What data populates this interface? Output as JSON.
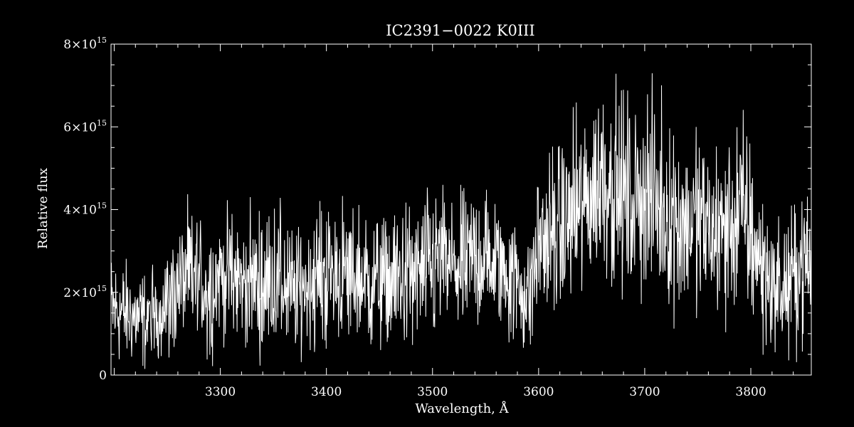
{
  "chart_data": {
    "type": "line",
    "title": "IC2391−0022   K0III",
    "xlabel": "Wavelength, Å",
    "ylabel": "Relative flux",
    "xlim": [
      3197,
      3857
    ],
    "ylim": [
      0,
      8000000000000000.0
    ],
    "x_ticks": [
      3300,
      3400,
      3500,
      3600,
      3700,
      3800
    ],
    "y_ticks": [
      0,
      2000000000000000.0,
      4000000000000000.0,
      6000000000000000.0,
      8000000000000000.0
    ],
    "y_tick_labels": [
      {
        "mantissa": "0",
        "exponent": ""
      },
      {
        "mantissa": "2×10",
        "exponent": "15"
      },
      {
        "mantissa": "4×10",
        "exponent": "15"
      },
      {
        "mantissa": "6×10",
        "exponent": "15"
      },
      {
        "mantissa": "8×10",
        "exponent": "15"
      }
    ],
    "grid": false,
    "legend": "none",
    "colors": {
      "background": "#000000",
      "foreground": "#ffffff"
    },
    "series": [
      {
        "x": [
          3197,
          3210,
          3220,
          3230,
          3240,
          3250,
          3260,
          3270,
          3280,
          3290,
          3300,
          3310,
          3320,
          3330,
          3340,
          3350,
          3360,
          3370,
          3380,
          3390,
          3400,
          3410,
          3420,
          3430,
          3440,
          3450,
          3460,
          3470,
          3480,
          3490,
          3500,
          3510,
          3520,
          3530,
          3540,
          3550,
          3560,
          3570,
          3580,
          3590,
          3600,
          3610,
          3620,
          3630,
          3640,
          3650,
          3660,
          3670,
          3680,
          3690,
          3700,
          3710,
          3720,
          3730,
          3740,
          3750,
          3760,
          3770,
          3780,
          3790,
          3800,
          3810,
          3820,
          3830,
          3840,
          3850,
          3857
        ],
        "y": [
          1600000000000000.0,
          1500000000000000.0,
          1400000000000000.0,
          1300000000000000.0,
          1500000000000000.0,
          1700000000000000.0,
          2200000000000000.0,
          2400000000000000.0,
          2300000000000000.0,
          2000000000000000.0,
          2500000000000000.0,
          2400000000000000.0,
          2200000000000000.0,
          2300000000000000.0,
          2100000000000000.0,
          2400000000000000.0,
          2200000000000000.0,
          1900000000000000.0,
          2200000000000000.0,
          2300000000000000.0,
          2400000000000000.0,
          2500000000000000.0,
          2300000000000000.0,
          2400000000000000.0,
          2200000000000000.0,
          2300000000000000.0,
          2200000000000000.0,
          2400000000000000.0,
          2300000000000000.0,
          2500000000000000.0,
          2600000000000000.0,
          2800000000000000.0,
          2500000000000000.0,
          2600000000000000.0,
          2900000000000000.0,
          2800000000000000.0,
          2700000000000000.0,
          2500000000000000.0,
          2200000000000000.0,
          1800000000000000.0,
          3200000000000000.0,
          3300000000000000.0,
          3500000000000000.0,
          3800000000000000.0,
          4000000000000000.0,
          4400000000000000.0,
          4800000000000000.0,
          4600000000000000.0,
          4300000000000000.0,
          4200000000000000.0,
          4500000000000000.0,
          4200000000000000.0,
          3900000000000000.0,
          3800000000000000.0,
          3600000000000000.0,
          3700000000000000.0,
          3500000000000000.0,
          3400000000000000.0,
          3600000000000000.0,
          4000000000000000.0,
          3400000000000000.0,
          2600000000000000.0,
          2200000000000000.0,
          2000000000000000.0,
          2300000000000000.0,
          2800000000000000.0,
          2500000000000000.0
        ],
        "noise_amplitude": [
          1100000000000000.0,
          1000000000000000.0,
          900000000000000.0,
          1000000000000000.0,
          1000000000000000.0,
          1100000000000000.0,
          1200000000000000.0,
          1200000000000000.0,
          1300000000000000.0,
          1300000000000000.0,
          1300000000000000.0,
          1200000000000000.0,
          1200000000000000.0,
          1300000000000000.0,
          1300000000000000.0,
          1400000000000000.0,
          1400000000000000.0,
          1300000000000000.0,
          1300000000000000.0,
          1300000000000000.0,
          1400000000000000.0,
          1400000000000000.0,
          1400000000000000.0,
          1400000000000000.0,
          1300000000000000.0,
          1300000000000000.0,
          1300000000000000.0,
          1400000000000000.0,
          1400000000000000.0,
          1400000000000000.0,
          1500000000000000.0,
          1500000000000000.0,
          1400000000000000.0,
          1400000000000000.0,
          1400000000000000.0,
          1400000000000000.0,
          1300000000000000.0,
          1300000000000000.0,
          1200000000000000.0,
          1200000000000000.0,
          1500000000000000.0,
          1600000000000000.0,
          1700000000000000.0,
          1800000000000000.0,
          1800000000000000.0,
          1900000000000000.0,
          1900000000000000.0,
          1900000000000000.0,
          1900000000000000.0,
          1900000000000000.0,
          1900000000000000.0,
          1900000000000000.0,
          1800000000000000.0,
          1800000000000000.0,
          1800000000000000.0,
          1800000000000000.0,
          1700000000000000.0,
          1700000000000000.0,
          1900000000000000.0,
          2000000000000000.0,
          1800000000000000.0,
          1500000000000000.0,
          1300000000000000.0,
          1200000000000000.0,
          1300000000000000.0,
          1400000000000000.0,
          1400000000000000.0
        ]
      }
    ]
  }
}
